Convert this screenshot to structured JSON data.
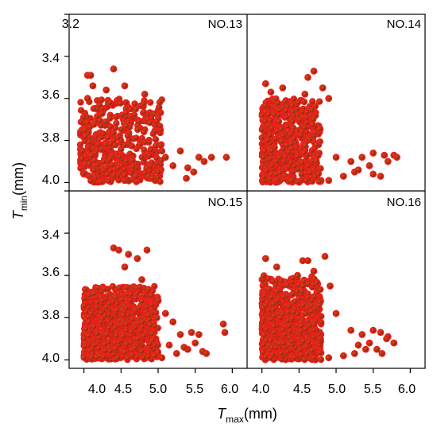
{
  "chart_data": {
    "type": "scatter",
    "layout": "2x2 shared axes",
    "xlabel": {
      "main": "T",
      "sub": "max",
      "unit": "(mm)"
    },
    "ylabel": {
      "main": "T",
      "sub": "min",
      "unit": "(mm)"
    },
    "xlim": [
      3.8,
      6.2
    ],
    "ylim": [
      4.04,
      3.2
    ],
    "y_axis_inverted": true,
    "x_ticks": [
      "4.0",
      "4.5",
      "5.0",
      "5.5",
      "6.0"
    ],
    "y_ticks_top_panels": [
      "3.2",
      "3.4",
      "3.6",
      "3.8",
      "4.0"
    ],
    "y_ticks_bottom_panels": [
      "3.4",
      "3.6",
      "3.8",
      "4.0"
    ],
    "grid": false,
    "legend": "none",
    "marker_color": "#e8201c",
    "marker_edge_color": "#7a2a0e",
    "panels": [
      {
        "label": "NO.13",
        "cluster": {
          "x_range": [
            3.95,
            5.05
          ],
          "y_range": [
            3.6,
            4.0
          ],
          "count": 440
        },
        "points": [
          [
            4.05,
            3.49
          ],
          [
            4.09,
            3.49
          ],
          [
            4.4,
            3.46
          ],
          [
            4.12,
            3.54
          ],
          [
            4.05,
            3.6
          ],
          [
            4.3,
            3.56
          ],
          [
            4.55,
            3.54
          ],
          [
            4.82,
            3.58
          ],
          [
            4.02,
            3.78
          ],
          [
            3.98,
            3.85
          ],
          [
            5.05,
            3.85
          ],
          [
            5.1,
            3.88
          ],
          [
            5.3,
            3.85
          ],
          [
            5.55,
            3.88
          ],
          [
            5.62,
            3.9
          ],
          [
            5.72,
            3.88
          ],
          [
            5.92,
            3.88
          ],
          [
            5.2,
            3.92
          ],
          [
            5.4,
            3.93
          ],
          [
            5.48,
            3.95
          ],
          [
            5.38,
            3.98
          ],
          [
            5.0,
            3.95
          ],
          [
            4.92,
            3.98
          ],
          [
            4.55,
            3.99
          ],
          [
            4.7,
            3.97
          ]
        ]
      },
      {
        "label": "NO.14",
        "cluster": {
          "x_range": [
            4.0,
            4.8
          ],
          "y_range": [
            3.6,
            4.0
          ],
          "count": 560
        },
        "points": [
          [
            4.05,
            3.53
          ],
          [
            4.28,
            3.55
          ],
          [
            4.62,
            3.5
          ],
          [
            4.7,
            3.47
          ],
          [
            4.82,
            3.55
          ],
          [
            4.58,
            3.58
          ],
          [
            4.12,
            3.57
          ],
          [
            4.9,
            3.6
          ],
          [
            5.0,
            3.88
          ],
          [
            5.2,
            3.9
          ],
          [
            5.35,
            3.88
          ],
          [
            5.5,
            3.86
          ],
          [
            5.65,
            3.87
          ],
          [
            5.78,
            3.87
          ],
          [
            5.82,
            3.88
          ],
          [
            5.3,
            3.94
          ],
          [
            5.5,
            3.96
          ],
          [
            5.6,
            3.97
          ],
          [
            5.1,
            3.97
          ],
          [
            4.9,
            3.99
          ],
          [
            4.6,
            3.99
          ],
          [
            4.4,
            3.99
          ],
          [
            5.7,
            3.9
          ],
          [
            5.45,
            3.92
          ],
          [
            5.25,
            3.95
          ]
        ]
      },
      {
        "label": "NO.15",
        "cluster": {
          "x_range": [
            4.0,
            5.0
          ],
          "y_range": [
            3.65,
            4.0
          ],
          "count": 900
        },
        "points": [
          [
            4.4,
            3.47
          ],
          [
            4.47,
            3.48
          ],
          [
            4.6,
            3.5
          ],
          [
            4.72,
            3.52
          ],
          [
            4.85,
            3.48
          ],
          [
            4.55,
            3.56
          ],
          [
            4.78,
            3.62
          ],
          [
            5.0,
            3.72
          ],
          [
            5.1,
            3.78
          ],
          [
            5.2,
            3.82
          ],
          [
            5.3,
            3.88
          ],
          [
            5.45,
            3.87
          ],
          [
            5.55,
            3.88
          ],
          [
            5.88,
            3.83
          ],
          [
            5.9,
            3.87
          ],
          [
            5.6,
            3.96
          ],
          [
            5.65,
            3.97
          ],
          [
            5.4,
            3.95
          ],
          [
            5.25,
            3.97
          ],
          [
            5.05,
            3.99
          ],
          [
            4.95,
            3.98
          ],
          [
            4.8,
            3.99
          ],
          [
            5.5,
            3.92
          ],
          [
            5.35,
            3.94
          ],
          [
            5.15,
            3.93
          ]
        ]
      },
      {
        "label": "NO.16",
        "cluster": {
          "x_range": [
            4.0,
            4.8
          ],
          "y_range": [
            3.6,
            4.0
          ],
          "count": 800
        },
        "points": [
          [
            4.05,
            3.52
          ],
          [
            4.55,
            3.53
          ],
          [
            4.62,
            3.53
          ],
          [
            4.85,
            3.51
          ],
          [
            4.7,
            3.58
          ],
          [
            4.48,
            3.6
          ],
          [
            4.2,
            3.56
          ],
          [
            4.92,
            3.65
          ],
          [
            5.0,
            3.78
          ],
          [
            5.2,
            3.86
          ],
          [
            5.35,
            3.88
          ],
          [
            5.5,
            3.86
          ],
          [
            5.6,
            3.87
          ],
          [
            5.7,
            3.89
          ],
          [
            5.78,
            3.92
          ],
          [
            5.55,
            3.95
          ],
          [
            5.4,
            3.95
          ],
          [
            5.62,
            3.97
          ],
          [
            5.25,
            3.97
          ],
          [
            5.1,
            3.98
          ],
          [
            4.9,
            3.99
          ],
          [
            4.7,
            3.99
          ],
          [
            5.68,
            3.9
          ],
          [
            5.45,
            3.92
          ],
          [
            5.3,
            3.93
          ]
        ]
      }
    ]
  }
}
